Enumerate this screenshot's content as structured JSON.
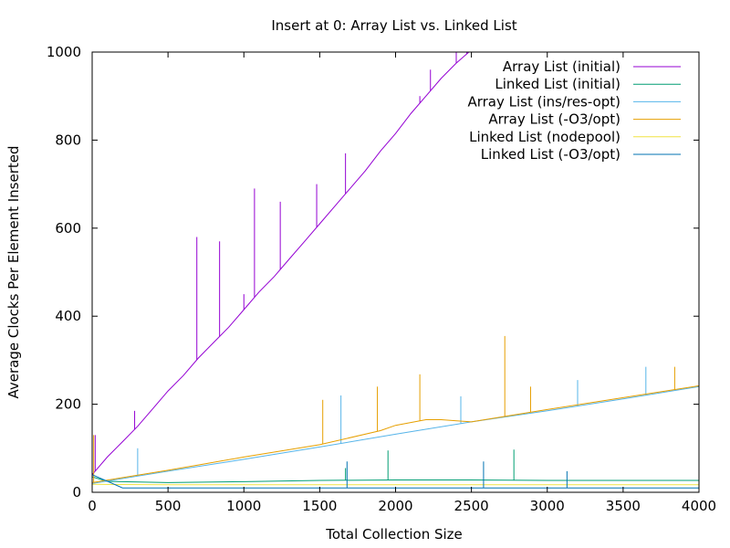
{
  "chart_data": {
    "type": "line",
    "title": "Insert at 0:  Array List vs. Linked List",
    "xlabel": "Total Collection Size",
    "ylabel": "Average Clocks Per Element Inserted",
    "xlim": [
      0,
      4000
    ],
    "ylim": [
      0,
      1000
    ],
    "xticks": [
      0,
      500,
      1000,
      1500,
      2000,
      2500,
      3000,
      3500,
      4000
    ],
    "yticks": [
      0,
      200,
      400,
      600,
      800,
      1000
    ],
    "grid": false,
    "legend_position": "top-right",
    "series": [
      {
        "name": "Array List (initial)",
        "color": "#9400d3",
        "x": [
          0,
          100,
          200,
          300,
          400,
          500,
          600,
          700,
          800,
          900,
          1000,
          1100,
          1200,
          1300,
          1400,
          1500,
          1600,
          1700,
          1800,
          1900,
          2000,
          2100,
          2200,
          2300,
          2400,
          2500,
          2550
        ],
        "y": [
          40,
          80,
          115,
          150,
          190,
          230,
          265,
          305,
          340,
          375,
          415,
          455,
          490,
          530,
          570,
          610,
          650,
          690,
          730,
          775,
          815,
          860,
          900,
          940,
          975,
          1005,
          1020
        ],
        "spikes": [
          [
            20,
            130
          ],
          [
            280,
            185
          ],
          [
            690,
            580
          ],
          [
            840,
            570
          ],
          [
            1000,
            450
          ],
          [
            1070,
            690
          ],
          [
            1240,
            660
          ],
          [
            1480,
            700
          ],
          [
            1670,
            770
          ],
          [
            2160,
            900
          ],
          [
            2230,
            960
          ],
          [
            2400,
            1000
          ],
          [
            2470,
            1000
          ]
        ]
      },
      {
        "name": "Linked List (initial)",
        "color": "#009e73",
        "x": [
          0,
          100,
          500,
          1000,
          1500,
          2000,
          2500,
          3000,
          3500,
          4000
        ],
        "y": [
          35,
          25,
          22,
          24,
          27,
          28,
          28,
          27,
          27,
          27
        ],
        "spikes": [
          [
            1670,
            55
          ],
          [
            1950,
            95
          ],
          [
            2780,
            97
          ]
        ]
      },
      {
        "name": "Array List (ins/res-opt)",
        "color": "#56b4e9",
        "x": [
          0,
          500,
          1000,
          1500,
          2000,
          2500,
          3000,
          3500,
          4000
        ],
        "y": [
          20,
          48,
          75,
          103,
          132,
          160,
          185,
          212,
          240
        ],
        "spikes": [
          [
            300,
            100
          ],
          [
            1640,
            220
          ],
          [
            2430,
            218
          ],
          [
            3200,
            255
          ],
          [
            3650,
            285
          ]
        ]
      },
      {
        "name": "Array List (-O3/opt)",
        "color": "#e69f00",
        "x": [
          0,
          500,
          1000,
          1500,
          1900,
          2000,
          2200,
          2300,
          2500,
          3000,
          3500,
          4000
        ],
        "y": [
          22,
          50,
          80,
          108,
          140,
          152,
          165,
          165,
          160,
          188,
          215,
          242
        ],
        "spikes": [
          [
            10,
            130
          ],
          [
            1520,
            210
          ],
          [
            1880,
            240
          ],
          [
            2160,
            268
          ],
          [
            2720,
            355
          ],
          [
            2890,
            240
          ],
          [
            3840,
            285
          ]
        ]
      },
      {
        "name": "Linked List (nodepool)",
        "color": "#f0e442",
        "x": [
          0,
          500,
          1000,
          2000,
          3000,
          4000
        ],
        "y": [
          18,
          17,
          17,
          17,
          17,
          17
        ],
        "spikes": []
      },
      {
        "name": "Linked List (-O3/opt)",
        "color": "#0072b2",
        "x": [
          0,
          200,
          500,
          1000,
          2000,
          3000,
          4000
        ],
        "y": [
          40,
          10,
          10,
          10,
          10,
          10,
          10
        ],
        "spikes": [
          [
            1680,
            70
          ],
          [
            2580,
            70
          ],
          [
            3130,
            48
          ]
        ]
      }
    ]
  }
}
